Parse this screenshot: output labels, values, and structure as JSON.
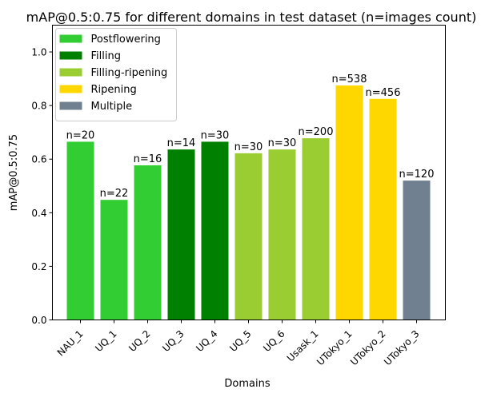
{
  "chart_data": {
    "type": "bar",
    "title": "mAP@0.5:0.75 for different domains in test dataset (n=images count)",
    "xlabel": "Domains",
    "ylabel": "mAP@0.5:0.75",
    "ylim": [
      0,
      1.1
    ],
    "yticks": [
      0.0,
      0.2,
      0.4,
      0.6,
      0.8,
      1.0
    ],
    "ytick_labels": [
      "0.0",
      "0.2",
      "0.4",
      "0.6",
      "0.8",
      "1.0"
    ],
    "grid": false,
    "legend_position": "top-left",
    "categories": [
      "NAU_1",
      "UQ_1",
      "UQ_2",
      "UQ_3",
      "UQ_4",
      "UQ_5",
      "UQ_6",
      "Usask_1",
      "UTokyo_1",
      "UTokyo_2",
      "UTokyo_3"
    ],
    "values": [
      0.665,
      0.448,
      0.577,
      0.636,
      0.665,
      0.622,
      0.636,
      0.678,
      0.875,
      0.825,
      0.52
    ],
    "bar_labels": [
      "n=20",
      "n=22",
      "n=16",
      "n=14",
      "n=30",
      "n=30",
      "n=30",
      "n=200",
      "n=538",
      "n=456",
      "n=120"
    ],
    "bar_groups": [
      "Postflowering",
      "Postflowering",
      "Postflowering",
      "Filling",
      "Filling",
      "Filling-ripening",
      "Filling-ripening",
      "Filling-ripening",
      "Ripening",
      "Ripening",
      "Multiple"
    ],
    "legend": [
      {
        "name": "Postflowering",
        "color": "#32cd32"
      },
      {
        "name": "Filling",
        "color": "#008000"
      },
      {
        "name": "Filling-ripening",
        "color": "#9acd32"
      },
      {
        "name": "Ripening",
        "color": "#ffd700"
      },
      {
        "name": "Multiple",
        "color": "#708090"
      }
    ]
  }
}
